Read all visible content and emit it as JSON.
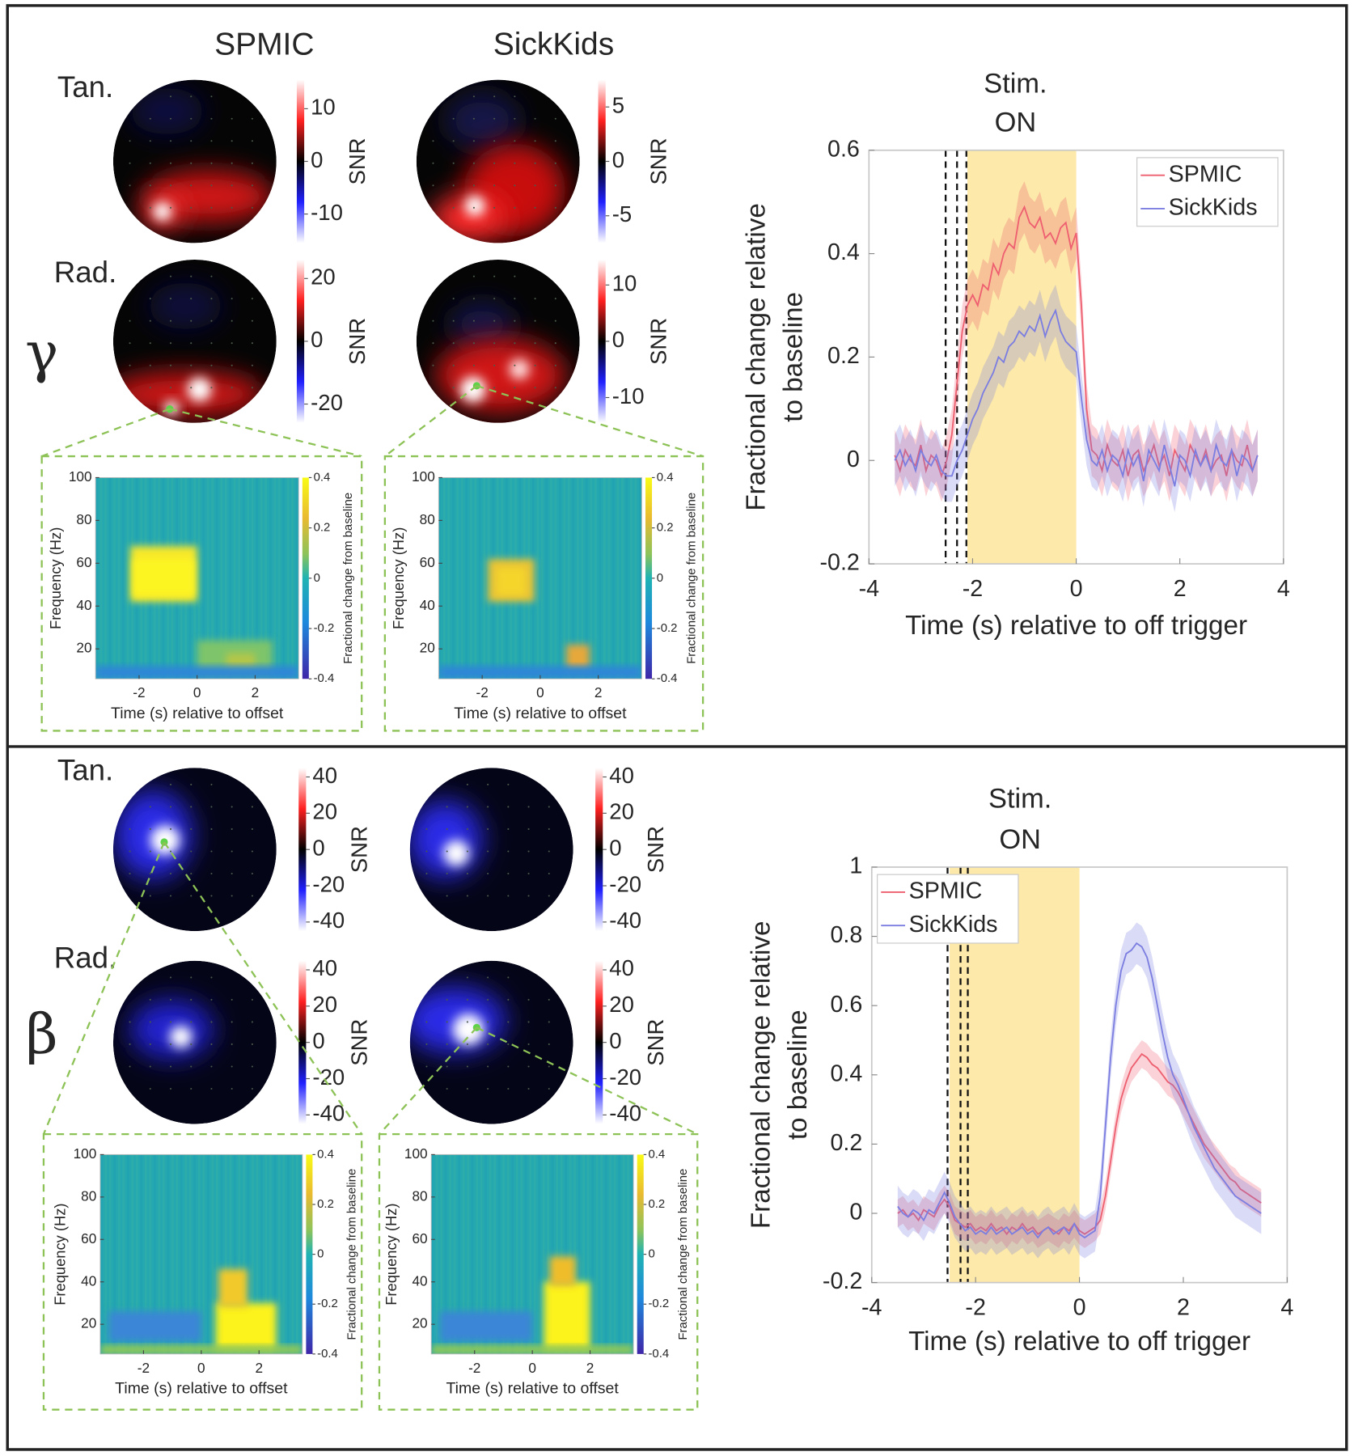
{
  "chart_data": [
    {
      "type": "line",
      "annotations": [
        "Stim.",
        "ON"
      ],
      "xlabel": "Time (s) relative to off trigger",
      "ylabel": [
        "Fractional change relative",
        "to baseline"
      ],
      "xlim": [
        -4,
        4
      ],
      "xticks": [
        -4,
        -2,
        0,
        2,
        4
      ],
      "ylim": [
        -0.2,
        0.6
      ],
      "yticks": [
        -0.2,
        0,
        0.2,
        0.4,
        0.6
      ],
      "shade": [
        -2.1,
        0
      ],
      "shade_color": "#fde9a9",
      "dashed_lines": [
        -2.52,
        -2.3,
        -2.12
      ],
      "legend": "upper right",
      "x": [
        -3.5,
        -3.4,
        -3.3,
        -3.2,
        -3.1,
        -3,
        -2.9,
        -2.8,
        -2.7,
        -2.6,
        -2.5,
        -2.4,
        -2.3,
        -2.2,
        -2.1,
        -2,
        -1.9,
        -1.8,
        -1.7,
        -1.6,
        -1.5,
        -1.4,
        -1.3,
        -1.2,
        -1.1,
        -1,
        -0.9,
        -0.8,
        -0.7,
        -0.6,
        -0.5,
        -0.4,
        -0.3,
        -0.2,
        -0.1,
        0,
        0.1,
        0.2,
        0.3,
        0.4,
        0.5,
        0.6,
        0.7,
        0.8,
        0.9,
        1,
        1.1,
        1.2,
        1.3,
        1.4,
        1.5,
        1.6,
        1.7,
        1.8,
        1.9,
        2,
        2.1,
        2.2,
        2.3,
        2.4,
        2.5,
        2.6,
        2.7,
        2.8,
        2.9,
        3,
        3.1,
        3.2,
        3.3,
        3.4,
        3.5
      ],
      "series": [
        {
          "name": "SPMIC",
          "color": "#ee5f70",
          "error": 0.05,
          "values": [
            0.01,
            -0.02,
            0.02,
            0,
            -0.01,
            0.03,
            -0.02,
            0.01,
            0,
            -0.03,
            0,
            0.05,
            0.15,
            0.25,
            0.3,
            0.32,
            0.3,
            0.34,
            0.33,
            0.38,
            0.36,
            0.4,
            0.42,
            0.41,
            0.47,
            0.49,
            0.46,
            0.45,
            0.47,
            0.43,
            0.44,
            0.42,
            0.45,
            0.46,
            0.41,
            0.44,
            0.3,
            0.1,
            0.02,
            0.01,
            -0.02,
            0.03,
            0,
            -0.01,
            0.02,
            -0.03,
            0.01,
            0.02,
            -0.02,
            0,
            0.03,
            -0.01,
            0.01,
            -0.03,
            0.02,
            0,
            -0.02,
            0.03,
            0.01,
            -0.01,
            0.02,
            -0.02,
            0,
            0.01,
            -0.03,
            0.02,
            0,
            -0.01,
            0.03,
            -0.02,
            0.01
          ]
        },
        {
          "name": "SickKids",
          "color": "#7b7ee0",
          "error": 0.05,
          "values": [
            0,
            0.02,
            -0.01,
            0.01,
            -0.02,
            0.02,
            0,
            -0.01,
            0.01,
            -0.02,
            -0.03,
            -0.03,
            0,
            0.02,
            0.05,
            0.08,
            0.1,
            0.13,
            0.15,
            0.17,
            0.2,
            0.19,
            0.22,
            0.23,
            0.25,
            0.24,
            0.26,
            0.25,
            0.28,
            0.24,
            0.27,
            0.29,
            0.25,
            0.23,
            0.22,
            0.21,
            0.12,
            0.04,
            0,
            -0.01,
            0.02,
            -0.02,
            0.01,
            0,
            -0.03,
            0.02,
            -0.01,
            0.01,
            -0.04,
            0.02,
            0,
            -0.02,
            0.03,
            -0.01,
            -0.05,
            0.01,
            0,
            -0.03,
            0.02,
            -0.01,
            0.01,
            -0.02,
            0.03,
            0,
            -0.01,
            0.02,
            -0.03,
            0.01,
            0,
            -0.02,
            0.01
          ]
        }
      ]
    },
    {
      "type": "line",
      "annotations": [
        "Stim.",
        "ON"
      ],
      "xlabel": "Time (s) relative to off trigger",
      "ylabel": [
        "Fractional change relative",
        "to baseline"
      ],
      "xlim": [
        -4,
        4
      ],
      "xticks": [
        -4,
        -2,
        0,
        2,
        4
      ],
      "ylim": [
        -0.2,
        1
      ],
      "yticks": [
        -0.2,
        0,
        0.2,
        0.4,
        0.6,
        0.8,
        1
      ],
      "shade": [
        -2.5,
        0
      ],
      "shade_color": "#fde9a9",
      "dashed_lines": [
        -2.54,
        -2.29,
        -2.15
      ],
      "legend": "upper left",
      "x": [
        -3.5,
        -3.4,
        -3.3,
        -3.2,
        -3.1,
        -3,
        -2.9,
        -2.8,
        -2.7,
        -2.6,
        -2.5,
        -2.4,
        -2.3,
        -2.2,
        -2.1,
        -2,
        -1.9,
        -1.8,
        -1.7,
        -1.6,
        -1.5,
        -1.4,
        -1.3,
        -1.2,
        -1.1,
        -1,
        -0.9,
        -0.8,
        -0.7,
        -0.6,
        -0.5,
        -0.4,
        -0.3,
        -0.2,
        -0.1,
        0,
        0.1,
        0.2,
        0.3,
        0.4,
        0.5,
        0.6,
        0.7,
        0.8,
        0.9,
        1,
        1.1,
        1.2,
        1.3,
        1.4,
        1.5,
        1.6,
        1.7,
        1.8,
        1.9,
        2,
        2.1,
        2.2,
        2.3,
        2.4,
        2.5,
        2.6,
        2.7,
        2.8,
        2.9,
        3,
        3.1,
        3.2,
        3.3,
        3.4,
        3.5
      ],
      "series": [
        {
          "name": "SPMIC",
          "color": "#ee5f70",
          "error": 0.04,
          "values": [
            0,
            0.01,
            -0.01,
            0,
            -0.02,
            0.01,
            0,
            -0.01,
            0.02,
            0.04,
            0.02,
            -0.02,
            -0.03,
            -0.04,
            -0.03,
            -0.05,
            -0.04,
            -0.05,
            -0.03,
            -0.05,
            -0.04,
            -0.06,
            -0.04,
            -0.05,
            -0.03,
            -0.05,
            -0.04,
            -0.06,
            -0.05,
            -0.04,
            -0.05,
            -0.06,
            -0.04,
            -0.05,
            -0.03,
            -0.05,
            -0.06,
            -0.05,
            -0.04,
            -0.02,
            0.05,
            0.15,
            0.25,
            0.33,
            0.38,
            0.42,
            0.44,
            0.46,
            0.45,
            0.43,
            0.42,
            0.4,
            0.38,
            0.37,
            0.35,
            0.32,
            0.29,
            0.26,
            0.23,
            0.2,
            0.18,
            0.16,
            0.14,
            0.12,
            0.1,
            0.09,
            0.07,
            0.06,
            0.05,
            0.04,
            0.03
          ]
        },
        {
          "name": "SickKids",
          "color": "#7b7ee0",
          "error": 0.06,
          "values": [
            0.02,
            0,
            -0.01,
            0.01,
            0,
            -0.02,
            0.01,
            0,
            0.03,
            0.06,
            0.03,
            -0.01,
            -0.03,
            -0.05,
            -0.04,
            -0.06,
            -0.05,
            -0.06,
            -0.04,
            -0.06,
            -0.05,
            -0.04,
            -0.06,
            -0.05,
            -0.04,
            -0.06,
            -0.05,
            -0.07,
            -0.05,
            -0.04,
            -0.06,
            -0.05,
            -0.04,
            -0.06,
            -0.03,
            -0.06,
            -0.07,
            -0.06,
            -0.05,
            0.05,
            0.25,
            0.45,
            0.6,
            0.7,
            0.75,
            0.76,
            0.78,
            0.77,
            0.74,
            0.68,
            0.6,
            0.52,
            0.45,
            0.4,
            0.37,
            0.33,
            0.29,
            0.25,
            0.22,
            0.19,
            0.16,
            0.13,
            0.11,
            0.09,
            0.07,
            0.05,
            0.04,
            0.03,
            0.02,
            0.01,
            0
          ]
        }
      ]
    }
  ],
  "topoplots": {
    "colorbar_label": "SNR",
    "panels": [
      {
        "symbol": "γ",
        "column_titles": [
          "SPMIC",
          "SickKids"
        ],
        "row_labels": [
          "Tan.",
          "Rad."
        ],
        "colorbars": [
          {
            "lim": [
              -15.5,
              15.5
            ],
            "ticks": [
              10,
              0,
              -10
            ]
          },
          {
            "lim": [
              -7.5,
              7.5
            ],
            "ticks": [
              5,
              0,
              -5
            ]
          },
          {
            "lim": [
              -26,
              26
            ],
            "ticks": [
              20,
              0,
              -20
            ]
          },
          {
            "lim": [
              -14.5,
              14.5
            ],
            "ticks": [
              10,
              0,
              -10
            ]
          }
        ]
      },
      {
        "symbol": "β",
        "row_labels": [
          "Tan.",
          "Rad."
        ],
        "colorbars": [
          {
            "lim": [
              -45,
              45
            ],
            "ticks": [
              40,
              20,
              0,
              -20,
              -40
            ]
          },
          {
            "lim": [
              -45,
              45
            ],
            "ticks": [
              40,
              20,
              0,
              -20,
              -40
            ]
          },
          {
            "lim": [
              -45,
              45
            ],
            "ticks": [
              40,
              20,
              0,
              -20,
              -40
            ]
          },
          {
            "lim": [
              -45,
              45
            ],
            "ticks": [
              40,
              20,
              0,
              -20,
              -40
            ]
          }
        ]
      }
    ]
  },
  "spectrogram": {
    "xlabel": "Time (s) relative to offset",
    "ylabel": "Frequency (Hz)",
    "colorbar_label": "Fractional change from baseline",
    "xlim": [
      -3.5,
      3.5
    ],
    "xticks": [
      -2,
      0,
      2
    ],
    "ylim": [
      6,
      100
    ],
    "yticks": [
      20,
      40,
      60,
      80,
      100
    ],
    "clim": [
      -0.4,
      0.4
    ],
    "cticks": [
      0.4,
      0.2,
      0,
      -0.2,
      -0.4
    ]
  }
}
